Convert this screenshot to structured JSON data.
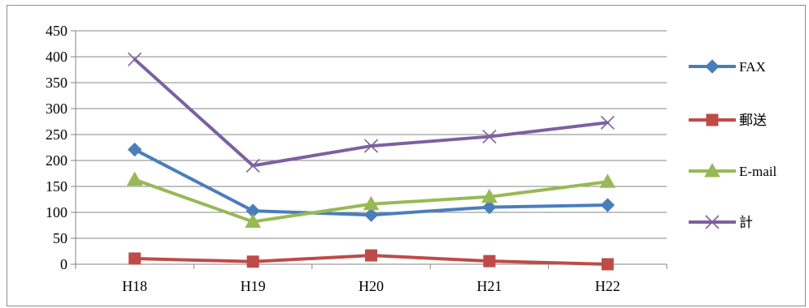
{
  "chart_data": {
    "type": "line",
    "categories": [
      "H18",
      "H19",
      "H20",
      "H21",
      "H22"
    ],
    "ylim": [
      0,
      450
    ],
    "yticks": [
      0,
      50,
      100,
      150,
      200,
      250,
      300,
      350,
      400,
      450
    ],
    "grid": "horizontal",
    "legend_placement": "right",
    "series": [
      {
        "name": "FAX",
        "values": [
          221,
          103,
          95,
          110,
          114
        ],
        "color": "#4a7ebb",
        "marker": "diamond"
      },
      {
        "name": "郵送",
        "values": [
          11,
          5,
          17,
          6,
          0
        ],
        "color": "#be4b48",
        "marker": "square"
      },
      {
        "name": "E-mail",
        "values": [
          163,
          82,
          116,
          130,
          159
        ],
        "color": "#98b954",
        "marker": "triangle"
      },
      {
        "name": "計",
        "values": [
          395,
          190,
          228,
          246,
          273
        ],
        "color": "#7d60a0",
        "marker": "x"
      }
    ]
  }
}
